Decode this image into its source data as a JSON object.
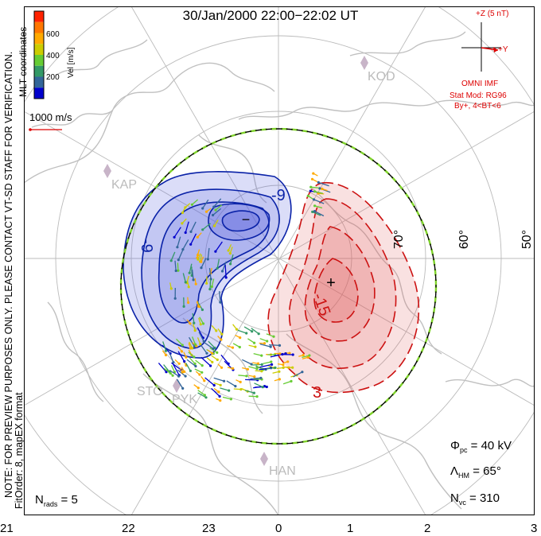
{
  "title": "30/Jan/2000 22:00−22:02 UT",
  "side_text": {
    "line1": "NOTE: FOR PREVIEW PURPOSES ONLY. PLEASE CONTACT VT-SD STAFF FOR VERIFICATION.",
    "line2": "FitOrder: 8, mapEX format"
  },
  "coords_label": "MLT coordinates",
  "velocity_scale": {
    "label": "Vel [m/s]",
    "ticks": [
      "600",
      "400",
      "200"
    ],
    "colors": [
      "#ff2200",
      "#ff7700",
      "#ffaa00",
      "#cccc00",
      "#66cc33",
      "#339966",
      "#336699",
      "#0000cc"
    ]
  },
  "ref_vector_label": "1000 m/s",
  "imf_panel": {
    "z_label": "+Z (5 nT)",
    "y_label": "+Y",
    "source": "OMNI IMF",
    "model": "Stat Mod: RG96",
    "condition": "By+, 4<BT<6"
  },
  "stations": [
    "KOD",
    "KAP",
    "STO",
    "PYK",
    "HAN"
  ],
  "latitude_labels": [
    "70°",
    "60°",
    "50°"
  ],
  "contour_labels": [
    "-9",
    "-9",
    "-15",
    "3"
  ],
  "extrema_markers": [
    "−",
    "+"
  ],
  "stats": {
    "phi_pc": "40 kV",
    "lambda_hm": "65°",
    "n_vc": "310",
    "n_rads": "5"
  },
  "mlt_axis": [
    "21",
    "22",
    "23",
    "0",
    "1",
    "2",
    "3"
  ],
  "colors": {
    "negative_cell": "#0a22a8",
    "positive_cell": "#cc1111",
    "coastline": "#c0c0c0",
    "grid": "#bbbbbb",
    "hm_boundary": "#7fd32a"
  }
}
